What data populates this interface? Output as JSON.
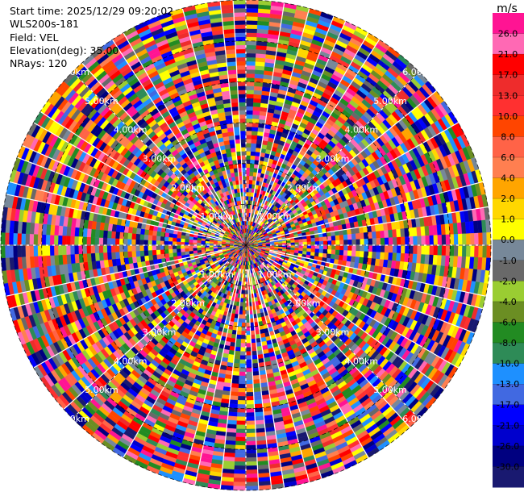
{
  "info": {
    "start_time": "Start time: 2025/12/29 09:20:02",
    "station": "WLS200s-181",
    "field": "Field: VEL",
    "elevation": "Elevation(deg): 35.00",
    "nrays": "NRays: 120"
  },
  "chart_data": {
    "type": "heatmap",
    "projection": "polar-ppi",
    "nrays": 120,
    "nrange_gates": 60,
    "colorbar": {
      "unit": "m/s",
      "levels": [
        26.0,
        21.0,
        17.0,
        13.0,
        10.0,
        8.0,
        6.0,
        4.0,
        2.0,
        1.0,
        0.0,
        -1.0,
        -2.0,
        -4.0,
        -6.0,
        -8.0,
        -10.0,
        -13.0,
        -17.0,
        -21.0,
        -26.0,
        -30.0
      ],
      "labels": [
        "26.0",
        "21.0",
        "17.0",
        "13.0",
        "10.0",
        "8.0",
        "6.0",
        "4.0",
        "2.0",
        "1.0",
        "0.0",
        "-1.0",
        "-2.0",
        "-4.0",
        "-6.0",
        "-8.0",
        "-10.0",
        "-13.0",
        "-17.0",
        "-21.0",
        "-26.0",
        "-30.0"
      ],
      "colors": [
        "#ff1493",
        "#ff69b4",
        "#ff0000",
        "#ee2c2c",
        "#ff3030",
        "#ff4500",
        "#ff6347",
        "#ff7f50",
        "#ffa500",
        "#ffd700",
        "#ffff00",
        "#778899",
        "#696969",
        "#9acd32",
        "#6b8e23",
        "#228b22",
        "#2e8b57",
        "#1e90ff",
        "#4169e1",
        "#0000ff",
        "#0000cd",
        "#000080",
        "#191970"
      ]
    },
    "range_labels": [
      "1.00km",
      "2.00km",
      "3.00km",
      "4.00km",
      "5.00km",
      "6.00km"
    ],
    "range_rings": 6,
    "spokes": 8,
    "grid": true
  }
}
